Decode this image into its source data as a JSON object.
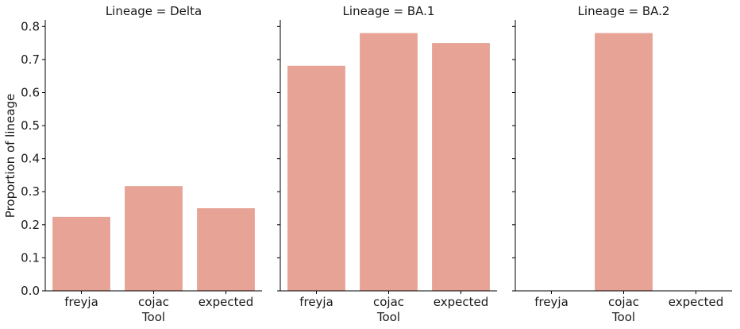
{
  "chart_data": {
    "type": "bar",
    "xlabel": "Tool",
    "ylabel": "Proportion of lineage",
    "ylim": [
      0,
      0.82
    ],
    "yticks": [
      "0.0",
      "0.1",
      "0.2",
      "0.3",
      "0.4",
      "0.5",
      "0.6",
      "0.7",
      "0.8"
    ],
    "categories": [
      "freyja",
      "cojac",
      "expected"
    ],
    "bar_color": "#e7a396",
    "grid": false,
    "panels": [
      {
        "title": "Lineage = Delta",
        "values": [
          0.224,
          0.317,
          0.25
        ]
      },
      {
        "title": "Lineage = BA.1",
        "values": [
          0.681,
          0.78,
          0.75
        ]
      },
      {
        "title": "Lineage = BA.2",
        "values": [
          0,
          0.78,
          0
        ]
      }
    ]
  }
}
